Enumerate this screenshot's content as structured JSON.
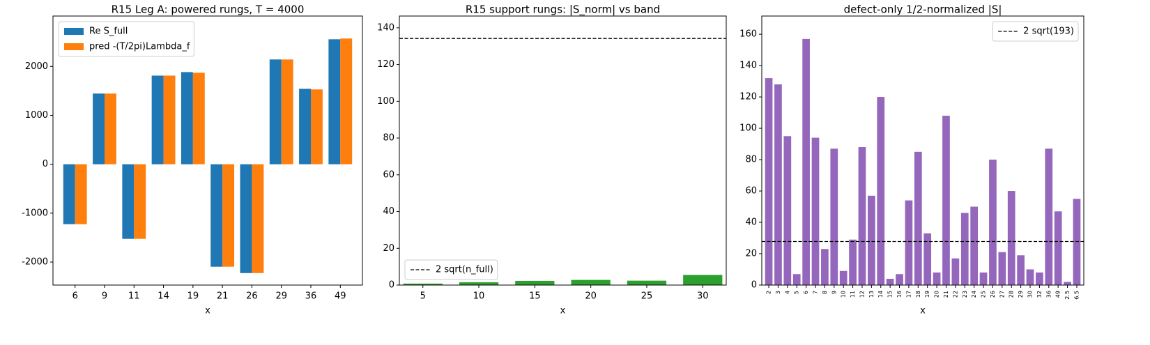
{
  "chart_data": [
    {
      "type": "bar",
      "title": "R15 Leg A: powered rungs, T = 4000",
      "xlabel": "x",
      "categories": [
        "6",
        "9",
        "11",
        "14",
        "19",
        "21",
        "26",
        "29",
        "36",
        "49"
      ],
      "series": [
        {
          "name": "Re S_full",
          "color": "#1f77b4",
          "values": [
            -1225,
            1445,
            -1525,
            1812,
            1884,
            -2095,
            -2225,
            2142,
            1542,
            2555
          ]
        },
        {
          "name": "pred -(T/2pi)Lambda_f",
          "color": "#ff7f0e",
          "values": [
            -1225,
            1445,
            -1525,
            1812,
            1870,
            -2095,
            -2225,
            2142,
            1530,
            2570
          ]
        }
      ],
      "ylim": [
        -2470,
        3030
      ],
      "yticks": [
        -2000,
        -1000,
        0,
        1000,
        2000
      ],
      "legend": "upper left"
    },
    {
      "type": "bar",
      "title": "R15 support rungs: |S_norm| vs band",
      "xlabel": "x",
      "x": [
        5,
        10,
        15,
        20,
        25,
        30
      ],
      "series": [
        {
          "color": "#2ca02c",
          "values": [
            0.8,
            1.5,
            2.3,
            2.8,
            2.4,
            5.5
          ]
        }
      ],
      "xlim": [
        2.9,
        32.1
      ],
      "xticks": [
        5,
        10,
        15,
        20,
        25,
        30
      ],
      "ylim": [
        0,
        146.4
      ],
      "yticks": [
        0,
        20,
        40,
        60,
        80,
        100,
        120,
        140
      ],
      "hline": {
        "name": "2 sqrt(n_full)",
        "value": 134.2,
        "color": "#000000",
        "style": "dashed"
      },
      "legend": "lower left"
    },
    {
      "type": "bar",
      "title": "defect-only 1/2-normalized |S|",
      "xlabel": "x",
      "categories": [
        "2",
        "3",
        "4",
        "5",
        "6",
        "7",
        "8",
        "9",
        "10",
        "11",
        "12",
        "13",
        "14",
        "15",
        "16",
        "17",
        "18",
        "19",
        "20",
        "21",
        "22",
        "23",
        "24",
        "25",
        "26",
        "27",
        "28",
        "29",
        "30",
        "32",
        "36",
        "49",
        "2.5",
        "6.5"
      ],
      "series": [
        {
          "color": "#9467bd",
          "values": [
            132,
            128,
            95,
            7,
            157,
            94,
            23,
            87,
            9,
            29,
            88,
            57,
            120,
            4,
            7,
            54,
            85,
            33,
            8,
            108,
            17,
            46,
            50,
            8,
            80,
            21,
            60,
            19,
            10,
            8,
            87,
            47,
            2,
            55
          ]
        }
      ],
      "ylim": [
        0,
        171.6
      ],
      "yticks": [
        0,
        20,
        40,
        60,
        80,
        100,
        120,
        140,
        160
      ],
      "hline": {
        "name": "2 sqrt(193)",
        "value": 27.8,
        "color": "#000000",
        "style": "dashed"
      },
      "xtick_rotation": 90,
      "legend": "upper right"
    }
  ]
}
